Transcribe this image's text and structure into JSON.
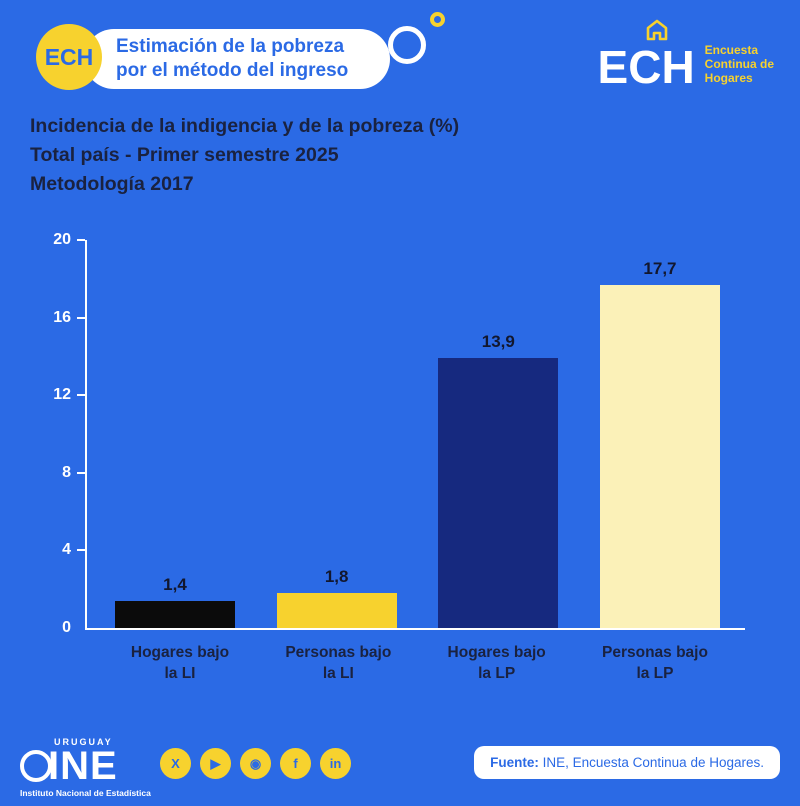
{
  "colors": {
    "background": "#2B6AE5",
    "navy_text": "#1A2240",
    "yellow": "#F7D22E",
    "white": "#FFFFFF"
  },
  "header": {
    "badge_text": "ECH",
    "pill_line1": "Estimación de la pobreza",
    "pill_line2": "por el método del ingreso",
    "logo_text": "ECH",
    "logo_subtitle_lines": [
      "Encuesta",
      "Continua de",
      "Hogares"
    ]
  },
  "chart_data": {
    "type": "bar",
    "title": "Incidencia de la indigencia y de la pobreza (%)",
    "subtitle": "Total país - Primer semestre 2025",
    "methodology": "Metodología 2017",
    "categories": [
      "Hogares bajo la LI",
      "Personas bajo la LI",
      "Hogares bajo la LP",
      "Personas bajo la LP"
    ],
    "category_lines": [
      [
        "Hogares bajo",
        "la LI"
      ],
      [
        "Personas bajo",
        "la LI"
      ],
      [
        "Hogares bajo",
        "la LP"
      ],
      [
        "Personas bajo",
        "la LP"
      ]
    ],
    "values": [
      1.4,
      1.8,
      13.9,
      17.7
    ],
    "value_labels": [
      "1,4",
      "1,8",
      "13,9",
      "17,7"
    ],
    "bar_colors": [
      "#0B0B0B",
      "#F7D22E",
      "#16297F",
      "#FBF1B8"
    ],
    "ylim": [
      0,
      20
    ],
    "yticks": [
      0,
      4,
      8,
      12,
      16,
      20
    ],
    "grid": false,
    "legend": false
  },
  "footer": {
    "ine_country": "URUGUAY",
    "ine_acronym": "INE",
    "ine_subtitle": "Instituto Nacional de Estadística",
    "social_icons": [
      {
        "name": "x-icon",
        "glyph": "X"
      },
      {
        "name": "youtube-icon",
        "glyph": "▶"
      },
      {
        "name": "instagram-icon",
        "glyph": "◉"
      },
      {
        "name": "facebook-icon",
        "glyph": "f"
      },
      {
        "name": "linkedin-icon",
        "glyph": "in"
      }
    ],
    "source_label": "Fuente:",
    "source_text": " INE, Encuesta Continua de Hogares."
  }
}
